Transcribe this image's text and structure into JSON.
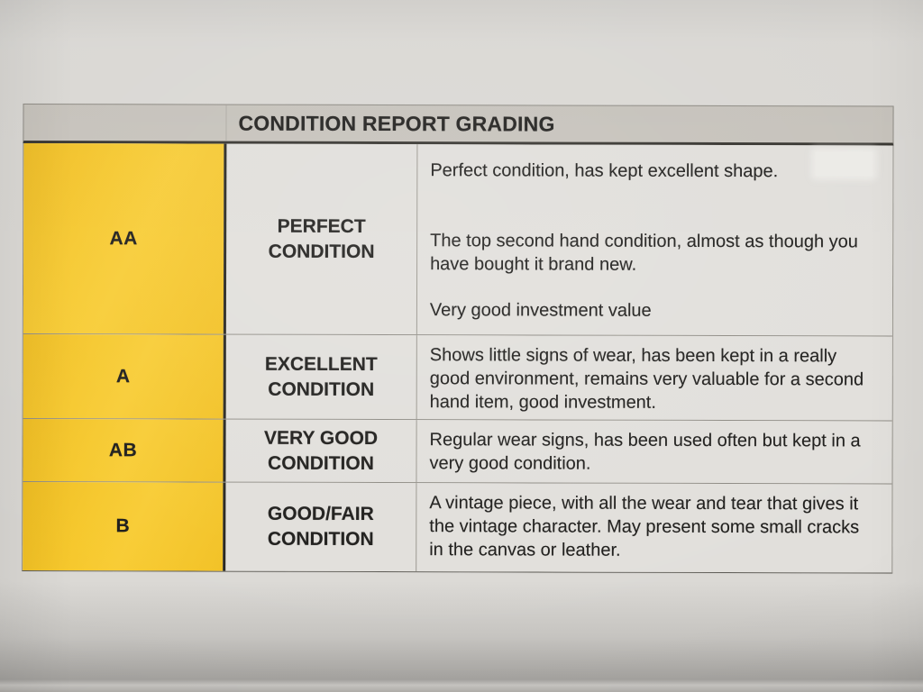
{
  "page": {
    "type": "photographed printed document",
    "paper_color": "#dbd9d5",
    "ink_color": "#1d1c1a"
  },
  "table": {
    "header": {
      "title": "CONDITION REPORT GRADING",
      "background_color": "#c6c2bb"
    },
    "grade_column_color": "#f5c62a",
    "rows": [
      {
        "grade": "AA",
        "condition": "PERFECT CONDITION",
        "paragraphs": [
          "Perfect condition, has kept excellent shape.",
          "The top second hand condition, almost as though you have bought it brand new.",
          "Very good investment value"
        ]
      },
      {
        "grade": "A",
        "condition": "EXCELLENT CONDITION",
        "paragraphs": [
          "Shows little signs of wear, has been kept in a really good environment, remains very valuable for a second hand item, good investment."
        ]
      },
      {
        "grade": "AB",
        "condition": "VERY GOOD CONDITION",
        "paragraphs": [
          "Regular wear signs, has been used often but kept in a very good condition."
        ]
      },
      {
        "grade": "B",
        "condition": "GOOD/FAIR CONDITION",
        "paragraphs": [
          "A vintage piece, with all the wear and tear that gives it the vintage character. May present some small cracks in the canvas or leather."
        ]
      }
    ]
  }
}
